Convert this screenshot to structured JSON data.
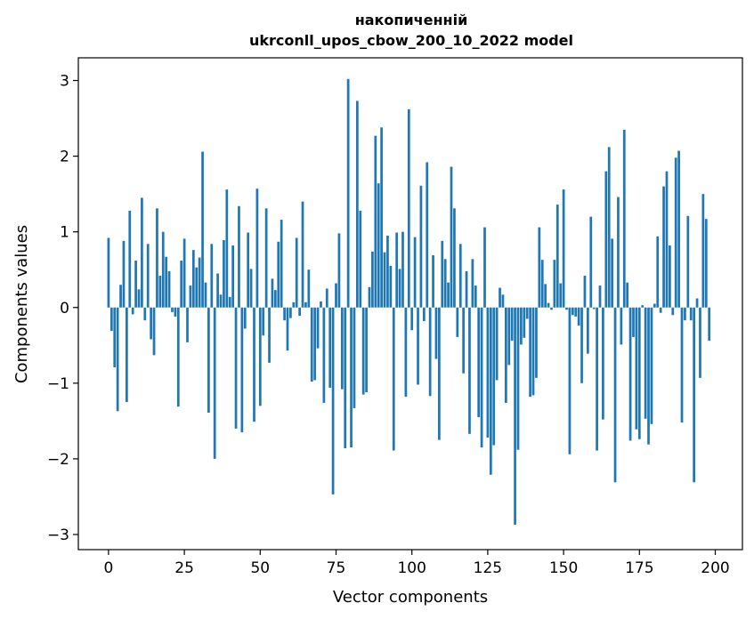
{
  "chart_data": {
    "type": "bar",
    "title": "накопиченній\nukrconll_upos_cbow_200_10_2022 model",
    "xlabel": "Vector components",
    "ylabel": "Components values",
    "xlim": [
      -9.95,
      208.95
    ],
    "ylim": [
      -3.2,
      3.3
    ],
    "xticks": [
      0,
      25,
      50,
      75,
      100,
      125,
      150,
      175,
      200
    ],
    "yticks": [
      -3,
      -2,
      -1,
      0,
      1,
      2,
      3
    ],
    "xtick_labels": [
      "0",
      "25",
      "50",
      "75",
      "100",
      "125",
      "150",
      "175",
      "200"
    ],
    "ytick_labels": [
      "−3",
      "−2",
      "−1",
      "0",
      "1",
      "2",
      "3"
    ],
    "bar_color": "#1f77b4",
    "grid": false,
    "values": [
      0.92,
      -0.31,
      -0.79,
      -1.37,
      0.3,
      0.88,
      -1.25,
      1.28,
      -0.09,
      0.62,
      0.24,
      1.45,
      -0.17,
      0.84,
      -0.42,
      -0.63,
      1.31,
      0.42,
      1.0,
      0.67,
      0.48,
      -0.06,
      -0.12,
      -1.31,
      0.62,
      0.91,
      -0.46,
      0.29,
      0.76,
      0.53,
      0.66,
      2.06,
      0.33,
      -1.39,
      0.84,
      -2.0,
      0.45,
      0.17,
      0.89,
      1.56,
      0.14,
      0.82,
      -1.6,
      1.34,
      -1.65,
      -0.28,
      0.99,
      0.51,
      -1.51,
      1.57,
      -1.3,
      -0.37,
      1.31,
      -0.73,
      0.38,
      0.23,
      0.87,
      1.16,
      -0.17,
      -0.57,
      -0.14,
      0.07,
      0.92,
      -0.11,
      1.4,
      0.07,
      0.5,
      -0.98,
      -0.96,
      -0.54,
      0.08,
      -1.26,
      0.25,
      -1.06,
      -2.47,
      0.32,
      0.98,
      -1.08,
      -1.86,
      3.02,
      -1.85,
      -1.33,
      2.73,
      1.28,
      -1.15,
      -1.12,
      0.27,
      0.74,
      2.27,
      1.64,
      2.38,
      0.73,
      0.95,
      0.55,
      -1.89,
      0.99,
      0.51,
      1.0,
      -1.18,
      2.62,
      -0.3,
      0.93,
      -1.02,
      1.61,
      -0.18,
      1.92,
      -1.17,
      0.69,
      -0.68,
      -1.75,
      0.88,
      0.64,
      0.33,
      1.86,
      1.31,
      -0.39,
      0.84,
      -0.87,
      0.48,
      -1.67,
      0.64,
      0.29,
      -1.45,
      -1.85,
      1.06,
      -1.72,
      -2.21,
      -1.82,
      -0.96,
      0.26,
      0.17,
      -1.26,
      -0.76,
      -0.44,
      -2.87,
      -1.88,
      -0.49,
      -0.4,
      -0.15,
      -1.18,
      -1.16,
      -0.93,
      1.06,
      0.63,
      0.31,
      0.06,
      -0.03,
      0.63,
      1.36,
      0.32,
      1.56,
      -0.03,
      -1.94,
      -0.1,
      -0.12,
      -0.24,
      -1.0,
      0.42,
      -0.61,
      1.2,
      -0.02,
      -1.89,
      0.29,
      -1.48,
      1.8,
      2.12,
      0.91,
      -2.31,
      1.46,
      -0.49,
      2.35,
      0.33,
      -1.76,
      -0.39,
      -1.61,
      -1.74,
      0.03,
      -1.47,
      -1.81,
      -1.54,
      0.05,
      0.94,
      -0.07,
      1.6,
      1.8,
      0.82,
      -0.1,
      1.98,
      2.07,
      -1.52,
      -0.17,
      1.21,
      -0.17,
      -2.31,
      0.12,
      -0.93,
      1.5,
      1.17,
      -0.44
    ]
  }
}
